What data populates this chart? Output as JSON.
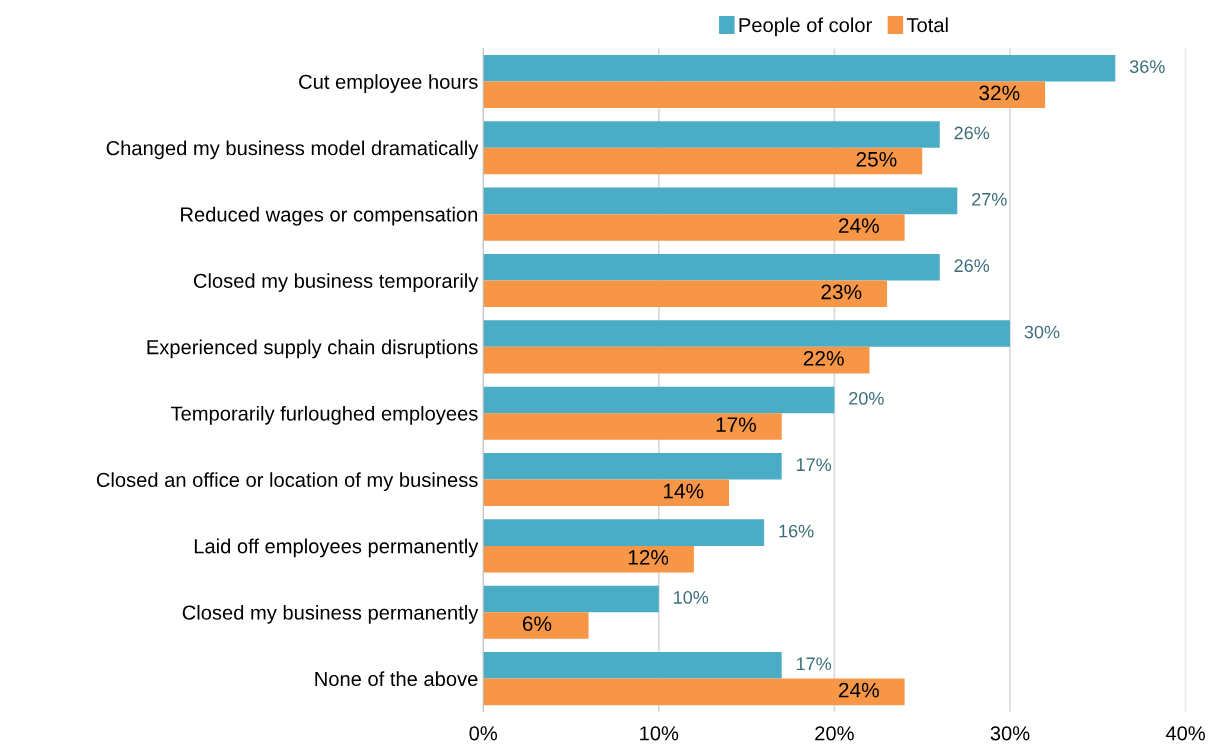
{
  "chart_data": {
    "type": "bar",
    "orientation": "horizontal",
    "categories": [
      "Cut employee hours",
      "Changed my business model dramatically",
      "Reduced wages or compensation",
      "Closed my business temporarily",
      "Experienced supply chain disruptions",
      "Temporarily furloughed employees",
      "Closed an office or location of my business",
      "Laid off employees permanently",
      "Closed my business permanently",
      "None of the above"
    ],
    "series": [
      {
        "name": "People of color",
        "color": "#4bacc6",
        "values": [
          36,
          26,
          27,
          26,
          30,
          20,
          17,
          16,
          10,
          17
        ],
        "value_labels": [
          "36%",
          "26%",
          "27%",
          "26%",
          "30%",
          "20%",
          "17%",
          "16%",
          "10%",
          "17%"
        ]
      },
      {
        "name": "Total",
        "color": "#f79646",
        "values": [
          32,
          25,
          24,
          23,
          22,
          17,
          14,
          12,
          6,
          24
        ],
        "value_labels": [
          "32%",
          "25%",
          "24%",
          "23%",
          "22%",
          "17%",
          "14%",
          "12%",
          "6%",
          "24%"
        ]
      }
    ],
    "xlim": [
      0,
      40
    ],
    "xticks": [
      {
        "value": 0,
        "label": "0%"
      },
      {
        "value": 10,
        "label": "10%"
      },
      {
        "value": 20,
        "label": "20%"
      },
      {
        "value": 30,
        "label": "30%"
      },
      {
        "value": 40,
        "label": "40%"
      }
    ],
    "grid": "x",
    "legend": "top"
  }
}
